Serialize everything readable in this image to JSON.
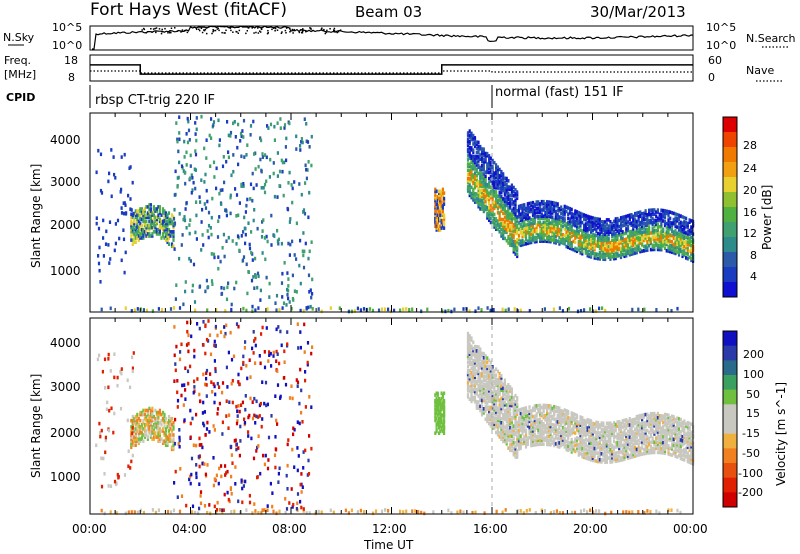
{
  "header": {
    "station": "Fort Hays West (fitACF)",
    "beam": "Beam 03",
    "date": "30/Mar/2013"
  },
  "noise_panel": {
    "left_label": "N.Sky",
    "right_label": "N.Search",
    "left_ticks": [
      "10^5",
      "10^0"
    ],
    "right_ticks": [
      "10^5",
      "10^0"
    ]
  },
  "freq_panel": {
    "left_label_1": "Freq.",
    "left_label_2": "[MHz]",
    "right_label": "Nave",
    "left_ticks": [
      "18",
      "8"
    ],
    "right_ticks": [
      "60",
      "0"
    ],
    "freq_segments": [
      {
        "start": 0.0,
        "end": 2.0,
        "value": 15
      },
      {
        "start": 2.0,
        "end": 14.0,
        "value": 11
      },
      {
        "start": 14.0,
        "end": 16.0,
        "value": 15
      },
      {
        "start": 16.0,
        "end": 24.0,
        "value": 15
      }
    ]
  },
  "cpid_panel": {
    "label": "CPID",
    "modes": [
      {
        "start_hour": 0,
        "text": "rbsp CT-trig 220 IF"
      },
      {
        "start_hour": 16,
        "text": "normal (fast) 151 IF"
      }
    ]
  },
  "x_axis": {
    "label": "Time UT",
    "ticks": [
      "00:00",
      "04:00",
      "08:00",
      "12:00",
      "16:00",
      "20:00",
      "00:00"
    ]
  },
  "power_panel": {
    "ylabel": "Slant Range [km]",
    "yticks": [
      "4000",
      "3000",
      "2000",
      "1000"
    ],
    "colorbar_label": "Power [dB]",
    "colorbar_ticks": [
      "28",
      "24",
      "20",
      "16",
      "12",
      "8",
      "4"
    ],
    "colorbar_colors": [
      "#dd0000",
      "#ee4400",
      "#f07a00",
      "#f0a010",
      "#e8d030",
      "#90c030",
      "#50b040",
      "#40a070",
      "#2e8b8b",
      "#2a5aa8",
      "#1a3cc0",
      "#1010d0"
    ]
  },
  "velocity_panel": {
    "ylabel": "Slant Range [km]",
    "yticks": [
      "4000",
      "3000",
      "2000",
      "1000"
    ],
    "colorbar_label": "Velocity [m s^-1]",
    "colorbar_ticks": [
      "200",
      "100",
      "50",
      "15",
      "-15",
      "-50",
      "-100",
      "-200"
    ],
    "colorbar_colors": [
      "#1010c0",
      "#2a3aa8",
      "#2a6a8a",
      "#3aa060",
      "#70c040",
      "#c8c8c0",
      "#c8c8c0",
      "#f0b040",
      "#f08020",
      "#e85010",
      "#e02000",
      "#d00000"
    ]
  },
  "chart_data": [
    {
      "type": "heatmap",
      "title": "Fort Hays West (fitACF) Beam 03 30/Mar/2013",
      "xlabel": "Time UT",
      "ylabel": "Slant Range [km]",
      "xlim": [
        0,
        24
      ],
      "ylim": [
        180,
        4500
      ],
      "colorbar": "Power [dB]",
      "zlim": [
        0,
        30
      ],
      "regions": [
        {
          "x": [
            1.6,
            3.2
          ],
          "y": [
            1600,
            2700
          ],
          "value": 18
        },
        {
          "x": [
            12.8,
            14.1
          ],
          "y": [
            2000,
            2900
          ],
          "value": 20
        },
        {
          "x": [
            13.2,
            15.5
          ],
          "y": [
            1800,
            3700
          ],
          "value": 18
        },
        {
          "x": [
            15.5,
            24.0
          ],
          "y": [
            1500,
            2800
          ],
          "value": 22
        }
      ]
    },
    {
      "type": "heatmap",
      "title": "Fort Hays West (fitACF) Beam 03 30/Mar/2013",
      "xlabel": "Time UT",
      "ylabel": "Slant Range [km]",
      "xlim": [
        0,
        24
      ],
      "ylim": [
        180,
        4500
      ],
      "colorbar": "Velocity [m s^-1]",
      "zlim": [
        -250,
        250
      ],
      "regions": [
        {
          "x": [
            1.6,
            3.2
          ],
          "y": [
            1600,
            2700
          ],
          "value": -50
        },
        {
          "x": [
            3.3,
            8.8
          ],
          "y": [
            200,
            4500
          ],
          "value": 150
        },
        {
          "x": [
            13.2,
            15.5
          ],
          "y": [
            1800,
            3700
          ],
          "value": 30
        },
        {
          "x": [
            15.5,
            24.0
          ],
          "y": [
            1500,
            2800
          ],
          "value": 0
        }
      ]
    }
  ]
}
